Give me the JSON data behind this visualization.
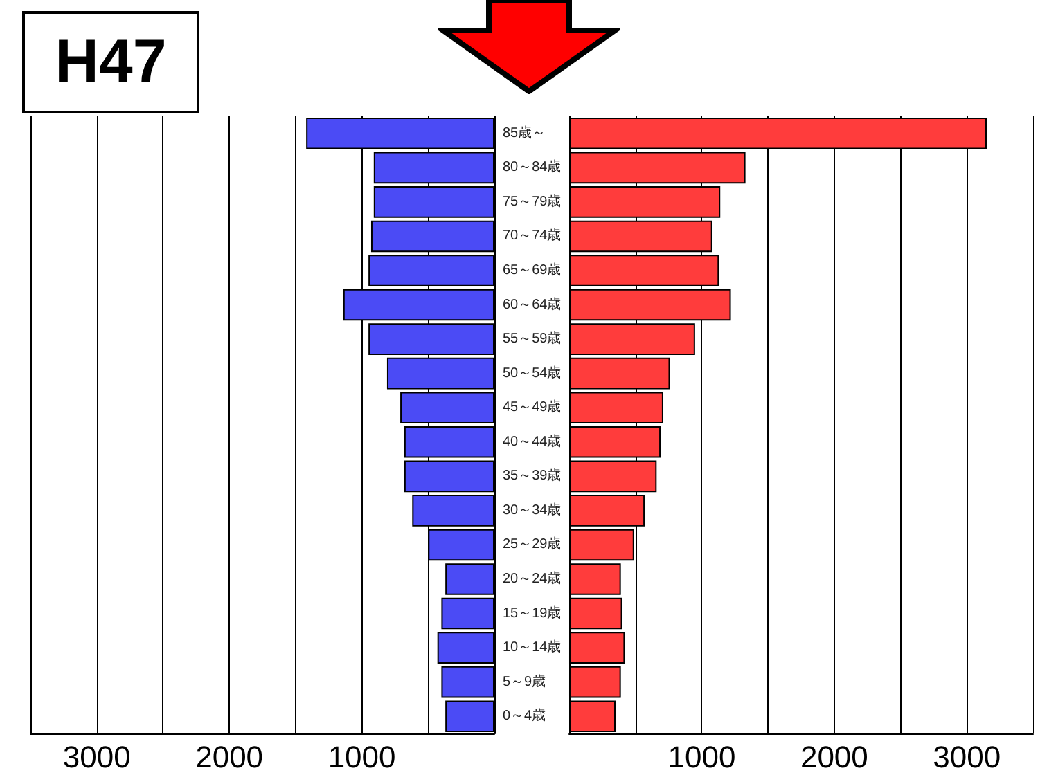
{
  "chart_data": [
    {
      "type": "bar",
      "orientation": "horizontal",
      "title": "H47",
      "categories": [
        null,
        null,
        null,
        null,
        null,
        null,
        null,
        null,
        null,
        null,
        null,
        null,
        null,
        null,
        null,
        null,
        null,
        null
      ],
      "color": "#4b4bf5",
      "values": [
        1420,
        910,
        910,
        930,
        950,
        1140,
        950,
        810,
        710,
        680,
        680,
        620,
        500,
        370,
        400,
        430,
        400,
        370
      ],
      "xlim": [
        3500,
        0
      ],
      "xticks": [
        {
          "value": 3500,
          "label": null
        },
        3000,
        {
          "value": 2500,
          "label": null
        },
        2000,
        {
          "value": 1500,
          "label": null
        },
        1000,
        {
          "value": 500,
          "label": null
        },
        {
          "value": 0,
          "label": null
        }
      ],
      "grid": "x",
      "tick_labels": "x"
    },
    {
      "type": "bar",
      "orientation": "horizontal",
      "categories": [
        "85歳～",
        "80～84歳",
        "75～79歳",
        "70～74歳",
        "65～69歳",
        "60～64歳",
        "55～59歳",
        "50～54歳",
        "45～49歳",
        "40～44歳",
        "35～39歳",
        "30～34歳",
        "25～29歳",
        "20～24歳",
        "15～19歳",
        "10～14歳",
        "5～9歳",
        "0～4歳"
      ],
      "color": "#ff3c3c",
      "values": [
        3150,
        1330,
        1140,
        1080,
        1130,
        1220,
        950,
        760,
        710,
        690,
        660,
        570,
        490,
        390,
        400,
        420,
        390,
        350
      ],
      "xlim": [
        0,
        3500
      ],
      "xticks": [
        {
          "value": 0,
          "label": null
        },
        {
          "value": 500,
          "label": null
        },
        1000,
        {
          "value": 1500,
          "label": null
        },
        2000,
        {
          "value": 2500,
          "label": null
        },
        3000,
        {
          "value": 3500,
          "label": null
        }
      ],
      "grid": "x"
    }
  ]
}
